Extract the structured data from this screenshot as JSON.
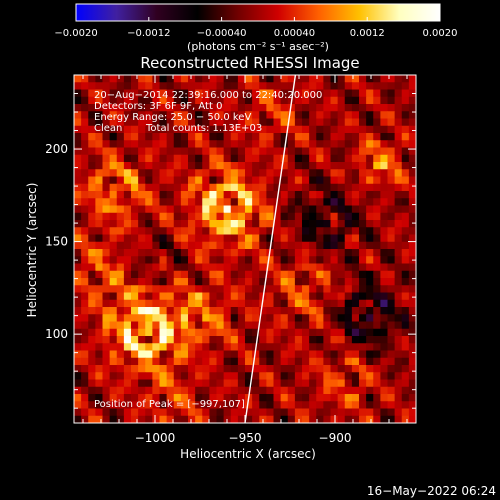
{
  "chart_data": {
    "type": "heatmap",
    "title": "Reconstructed RHESSI Image",
    "xlabel": "Heliocentric X (arcsec)",
    "ylabel": "Heliocentric Y (arcsec)",
    "xlim": [
      -1045,
      -855
    ],
    "ylim": [
      52,
      240
    ],
    "x_ticks": [
      -1000,
      -950,
      -900
    ],
    "x_tick_labels": [
      "−1000",
      "−950",
      "−900"
    ],
    "y_ticks": [
      100,
      150,
      200
    ],
    "y_tick_labels": [
      "100",
      "150",
      "200"
    ],
    "colorbar": {
      "vmin": -0.002,
      "vmax": 0.002,
      "ticks": [
        -0.002,
        -0.0012,
        -0.0004,
        0.0004,
        0.0012,
        0.002
      ],
      "tick_labels": [
        "−0.0020",
        "−0.0012",
        "−0.00040",
        "0.00040",
        "0.0012",
        "0.0020"
      ],
      "unit_label": "(photons cm⁻² s⁻¹ asec⁻²)",
      "colors": [
        "#0000ff",
        "#4020a0",
        "#300020",
        "#000000",
        "#700000",
        "#d00000",
        "#ff6000",
        "#ffc000",
        "#ffffc0",
        "#ffffff"
      ]
    },
    "annotations": [
      "20−Aug−2014 22:39:16.000 to 22:40:20.000",
      "Detectors: 3F 6F 9F, Att 0",
      "Energy Range: 25.0 − 50.0 keV",
      "Clean",
      "Total counts: 1.13E+03"
    ],
    "peak_label": "Position of Peak = [−997,107]",
    "peak_position": [
      -997,
      107
    ],
    "limb_points": [
      [
        -922,
        240
      ],
      [
        -950,
        52
      ]
    ],
    "sources": [
      {
        "x": -1005,
        "y": 102,
        "amp": 1.0,
        "sigma": 15
      },
      {
        "x": -960,
        "y": 168,
        "amp": 0.95,
        "sigma": 14
      },
      {
        "x": -1022,
        "y": 178,
        "amp": 0.55,
        "sigma": 13
      },
      {
        "x": -972,
        "y": 110,
        "amp": 0.45,
        "sigma": 12
      },
      {
        "x": -875,
        "y": 192,
        "amp": 0.7,
        "sigma": 8
      },
      {
        "x": -915,
        "y": 125,
        "amp": 0.4,
        "sigma": 14
      },
      {
        "x": -1030,
        "y": 135,
        "amp": 0.4,
        "sigma": 12
      },
      {
        "x": -895,
        "y": 75,
        "amp": 0.35,
        "sigma": 12
      },
      {
        "x": -935,
        "y": 220,
        "amp": 0.35,
        "sigma": 10
      },
      {
        "x": -990,
        "y": 65,
        "amp": 0.35,
        "sigma": 10
      },
      {
        "x": -905,
        "y": 160,
        "amp": -0.5,
        "sigma": 14
      },
      {
        "x": -882,
        "y": 110,
        "amp": -0.6,
        "sigma": 14
      },
      {
        "x": -1000,
        "y": 140,
        "amp": -0.25,
        "sigma": 10
      }
    ]
  },
  "footer": {
    "timestamp": "16−May−2022 06:24"
  }
}
